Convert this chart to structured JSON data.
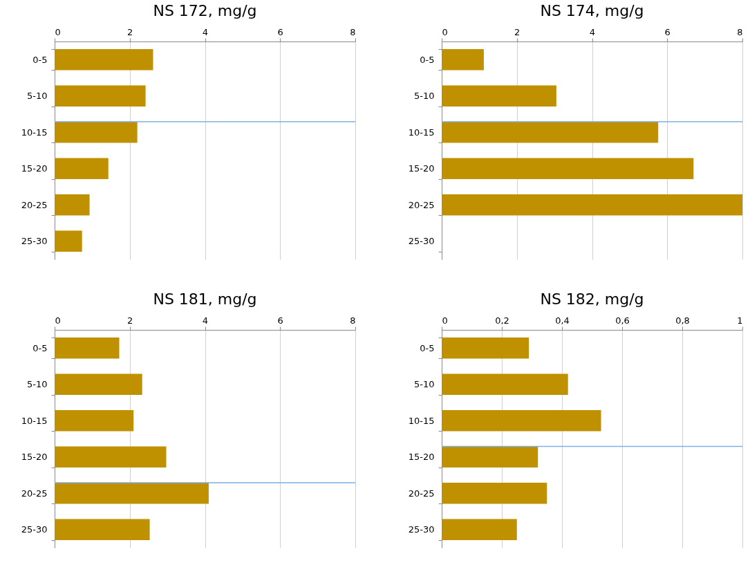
{
  "chart_data": [
    {
      "type": "bar",
      "orientation": "horizontal",
      "title": "NS 172, mg/g",
      "categories": [
        "0-5",
        "5-10",
        "10-15",
        "15-20",
        "20-25",
        "25-30"
      ],
      "series": [
        {
          "color": "#bf9000",
          "values": [
            2.62,
            2.42,
            2.2,
            1.43,
            0.93,
            0.73
          ]
        }
      ],
      "xlim": [
        0,
        8
      ],
      "xticks": [
        0,
        2,
        4,
        6,
        8
      ],
      "grid": "x",
      "ref_lines": [
        {
          "axis": "y",
          "value": "10-15",
          "color": "#7eaee6"
        }
      ]
    },
    {
      "type": "bar",
      "orientation": "horizontal",
      "title": "NS 174, mg/g",
      "categories": [
        "0-5",
        "5-10",
        "10-15",
        "15-20",
        "20-25",
        "25-30"
      ],
      "series": [
        {
          "color": "#bf9000",
          "values": [
            1.12,
            3.05,
            5.76,
            6.7,
            8,
            null
          ]
        }
      ],
      "xlim": [
        0,
        8
      ],
      "xticks": [
        0,
        2,
        4,
        6,
        8
      ],
      "grid": "x",
      "ref_lines": [
        {
          "axis": "y",
          "value": "10-15",
          "color": "#7eaee6"
        }
      ]
    },
    {
      "type": "bar",
      "orientation": "horizontal",
      "title": "NS 181, mg/g",
      "categories": [
        "0-5",
        "5-10",
        "10-15",
        "15-20",
        "20-25",
        "25-30"
      ],
      "series": [
        {
          "color": "#bf9000",
          "values": [
            1.72,
            2.33,
            2.1,
            2.97,
            4.1,
            2.53
          ]
        }
      ],
      "xlim": [
        0,
        8
      ],
      "xticks": [
        0,
        2,
        4,
        6,
        8
      ],
      "grid": "x",
      "ref_lines": [
        {
          "axis": "y",
          "value": "20-25",
          "color": "#7eaee6"
        }
      ]
    },
    {
      "type": "bar",
      "orientation": "horizontal",
      "title": "NS 182, mg/g",
      "categories": [
        "0-5",
        "5-10",
        "10-15",
        "15-20",
        "20-25",
        "25-30"
      ],
      "series": [
        {
          "color": "#bf9000",
          "values": [
            0.29,
            0.42,
            0.53,
            0.32,
            0.35,
            0.25
          ]
        }
      ],
      "xlim": [
        0,
        1
      ],
      "xticks": [
        0,
        {
          "value": 0.2,
          "label": "0,2"
        },
        {
          "value": 0.4,
          "label": "0,4"
        },
        {
          "value": 0.6,
          "label": "0,6"
        },
        {
          "value": 0.8,
          "label": "0,8"
        },
        1
      ],
      "grid": "x",
      "ref_lines": [
        {
          "axis": "y",
          "value": "15-20",
          "color": "#7eaee6"
        }
      ]
    }
  ]
}
